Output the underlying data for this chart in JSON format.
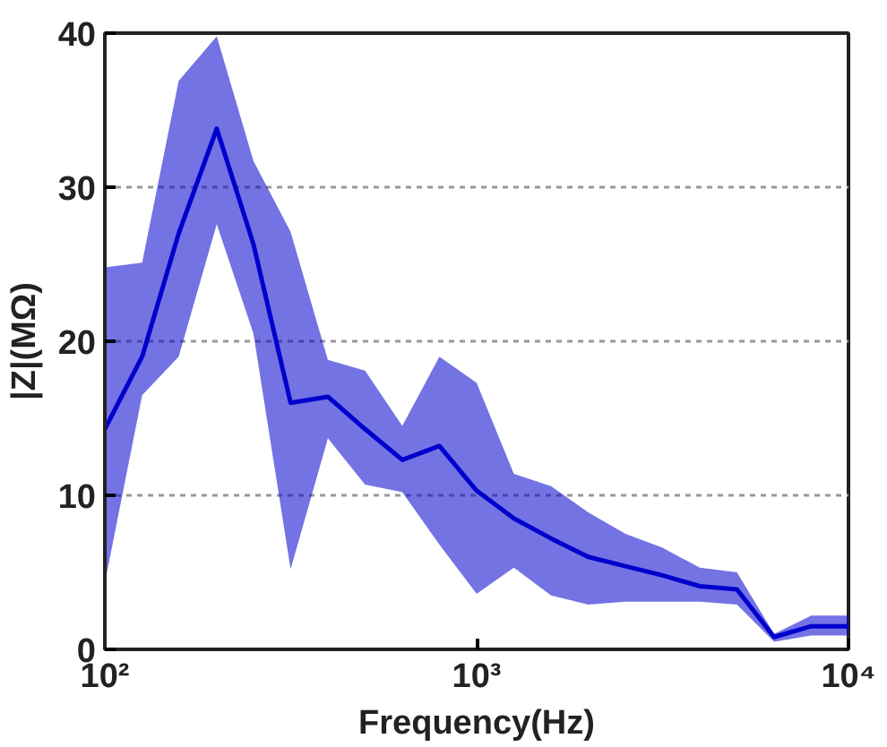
{
  "chart_data": {
    "type": "line",
    "xlabel": "Frequency(Hz)",
    "ylabel": "|Z|(MΩ)",
    "x": [
      100,
      126,
      158,
      200,
      251,
      316,
      398,
      501,
      631,
      794,
      1000,
      1259,
      1585,
      1995,
      2512,
      3162,
      3981,
      5012,
      6310,
      7943,
      10000
    ],
    "series": [
      {
        "color": "#0000cd",
        "values": [
          14.3,
          19,
          27,
          33.8,
          26.3,
          16.0,
          16.4,
          14.3,
          12.3,
          13.2,
          10.3,
          8.5,
          7.2,
          6.0,
          5.4,
          4.8,
          4.1,
          3.9,
          0.8,
          1.5,
          1.5
        ],
        "lower": [
          4.3,
          16.5,
          19.0,
          27.6,
          20.5,
          5.2,
          13.7,
          10.7,
          10.2,
          6.8,
          3.6,
          5.3,
          3.5,
          2.9,
          3.1,
          3.1,
          3.1,
          2.9,
          0.5,
          0.9,
          0.9
        ],
        "upper": [
          24.8,
          25.1,
          36.9,
          39.8,
          31.7,
          27.1,
          18.8,
          18.1,
          14.5,
          19.0,
          17.3,
          11.4,
          10.6,
          8.9,
          7.5,
          6.6,
          5.3,
          5.0,
          1.0,
          2.2,
          2.2
        ]
      }
    ],
    "log": "x",
    "xlim": [
      100,
      10000
    ],
    "ylim": [
      0,
      40
    ],
    "xticks": [
      {
        "value": 100,
        "label": "10²"
      },
      {
        "value": 1000,
        "label": "10³"
      },
      {
        "value": 10000,
        "label": "10⁴"
      }
    ],
    "yticks": [
      0,
      10,
      20,
      30,
      40
    ],
    "grid": "y"
  }
}
